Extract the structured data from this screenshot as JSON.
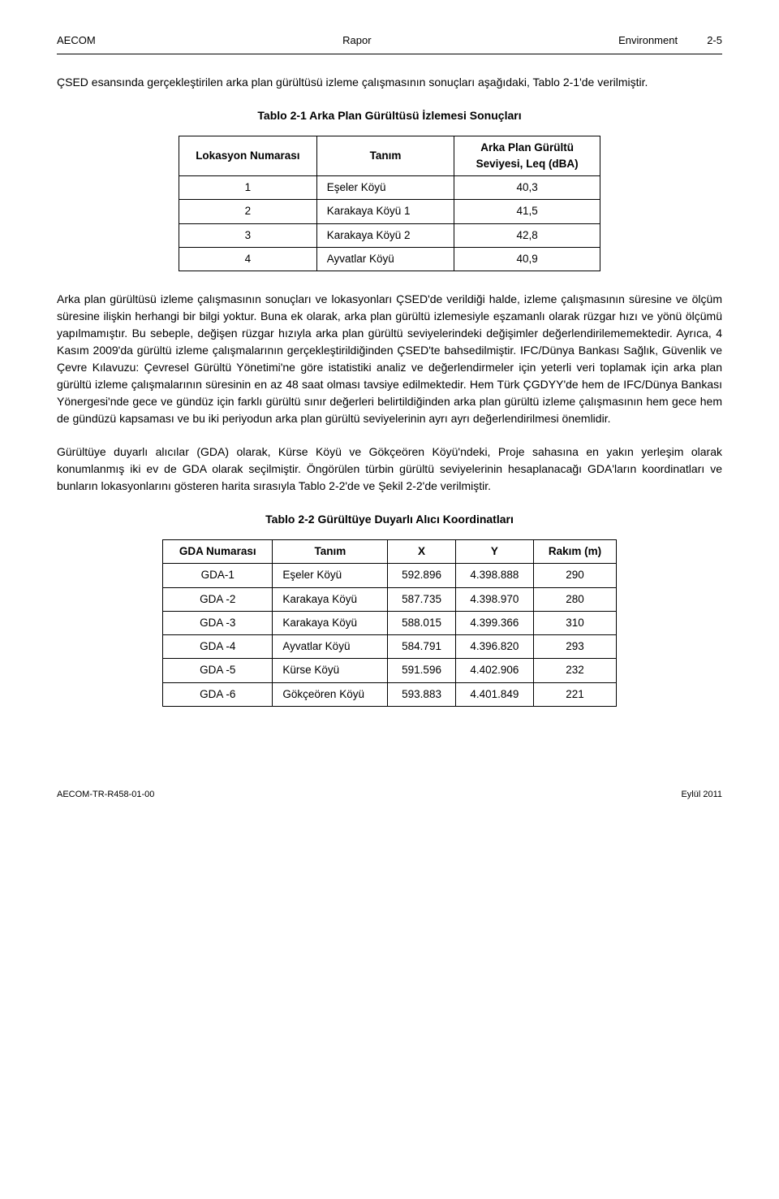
{
  "header": {
    "left": "AECOM",
    "center": "Rapor",
    "right_label": "Environment",
    "right_page": "2-5"
  },
  "para1": "ÇSED esansında gerçekleştirilen arka plan gürültüsü izleme çalışmasının sonuçları aşağıdaki, Tablo 2-1'de verilmiştir.",
  "table1": {
    "title": "Tablo 2-1 Arka Plan Gürültüsü İzlemesi Sonuçları",
    "headers": {
      "c1": "Lokasyon Numarası",
      "c2": "Tanım",
      "c3a": "Arka Plan Gürültü",
      "c3b": "Seviyesi, Leq (dBA)"
    },
    "rows": [
      {
        "n": "1",
        "t": "Eşeler Köyü",
        "v": "40,3"
      },
      {
        "n": "2",
        "t": "Karakaya Köyü 1",
        "v": "41,5"
      },
      {
        "n": "3",
        "t": "Karakaya Köyü 2",
        "v": "42,8"
      },
      {
        "n": "4",
        "t": "Ayvatlar Köyü",
        "v": "40,9"
      }
    ]
  },
  "para2": "Arka plan gürültüsü izleme çalışmasının sonuçları ve lokasyonları ÇSED'de verildiği halde, izleme çalışmasının süresine ve ölçüm süresine ilişkin herhangi bir bilgi yoktur. Buna ek olarak, arka plan gürültü izlemesiyle eşzamanlı olarak rüzgar hızı ve yönü ölçümü yapılmamıştır. Bu sebeple, değişen rüzgar hızıyla arka plan gürültü seviyelerindeki değişimler değerlendirilememektedir. Ayrıca, 4 Kasım 2009'da gürültü izleme çalışmalarının gerçekleştirildiğinden ÇSED'te bahsedilmiştir. IFC/Dünya Bankası Sağlık, Güvenlik ve Çevre Kılavuzu: Çevresel Gürültü Yönetimi'ne göre istatistiki analiz ve değerlendirmeler için yeterli veri toplamak için arka plan gürültü izleme çalışmalarının süresinin en az 48 saat olması tavsiye edilmektedir. Hem Türk ÇGDYY'de hem de IFC/Dünya Bankası Yönergesi'nde gece ve gündüz için farklı gürültü sınır değerleri belirtildiğinden arka plan gürültü izleme çalışmasının hem gece hem de gündüzü kapsaması ve bu iki periyodun arka plan gürültü seviyelerinin ayrı ayrı değerlendirilmesi önemlidir.",
  "para3": "Gürültüye duyarlı alıcılar (GDA) olarak, Kürse Köyü ve Gökçeören Köyü'ndeki, Proje sahasına en yakın yerleşim olarak konumlanmış iki ev de GDA olarak seçilmiştir. Öngörülen türbin gürültü seviyelerinin hesaplanacağı GDA'ların koordinatları ve bunların lokasyonlarını gösteren harita sırasıyla Tablo 2-2'de ve Şekil 2-2'de verilmiştir.",
  "table2": {
    "title": "Tablo 2-2 Gürültüye Duyarlı Alıcı Koordinatları",
    "headers": {
      "c1": "GDA Numarası",
      "c2": "Tanım",
      "c3": "X",
      "c4": "Y",
      "c5": "Rakım (m)"
    },
    "rows": [
      {
        "n": "GDA-1",
        "t": "Eşeler Köyü",
        "x": "592.896",
        "y": "4.398.888",
        "r": "290"
      },
      {
        "n": "GDA -2",
        "t": "Karakaya Köyü",
        "x": "587.735",
        "y": "4.398.970",
        "r": "280"
      },
      {
        "n": "GDA -3",
        "t": "Karakaya Köyü",
        "x": "588.015",
        "y": "4.399.366",
        "r": "310"
      },
      {
        "n": "GDA -4",
        "t": "Ayvatlar Köyü",
        "x": "584.791",
        "y": "4.396.820",
        "r": "293"
      },
      {
        "n": "GDA -5",
        "t": "Kürse Köyü",
        "x": "591.596",
        "y": "4.402.906",
        "r": "232"
      },
      {
        "n": "GDA -6",
        "t": "Gökçeören Köyü",
        "x": "593.883",
        "y": "4.401.849",
        "r": "221"
      }
    ]
  },
  "footer": {
    "left": "AECOM-TR-R458-01-00",
    "right": "Eylül 2011"
  }
}
